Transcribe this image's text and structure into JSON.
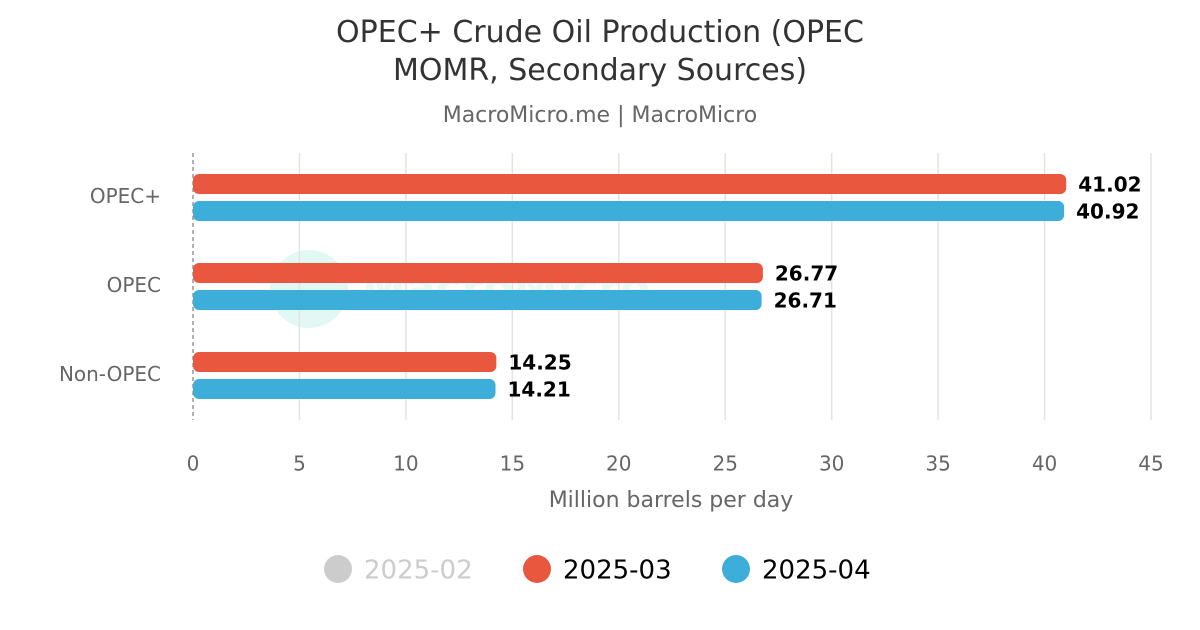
{
  "chart_data": {
    "type": "hbar",
    "title": "OPEC+ Crude Oil Production (OPEC MOMR, Secondary Sources)",
    "subtitle": "MacroMicro.me | MacroMicro",
    "watermark": "MacroMicro",
    "x_label": "Million barrels per day",
    "categories": [
      "OPEC+",
      "OPEC",
      "Non-OPEC"
    ],
    "series": [
      {
        "name": "2025-02",
        "color": "#cccccc",
        "hidden": true,
        "values": [
          null,
          null,
          null
        ]
      },
      {
        "name": "2025-03",
        "color": "#e9573f",
        "values": [
          41.02,
          26.77,
          14.25
        ]
      },
      {
        "name": "2025-04",
        "color": "#3daed9",
        "values": [
          40.92,
          26.71,
          14.21
        ]
      }
    ],
    "xlim": [
      0,
      45
    ],
    "xticks": [
      0,
      5,
      10,
      15,
      20,
      25,
      30,
      35,
      40,
      45
    ],
    "grid": true
  }
}
